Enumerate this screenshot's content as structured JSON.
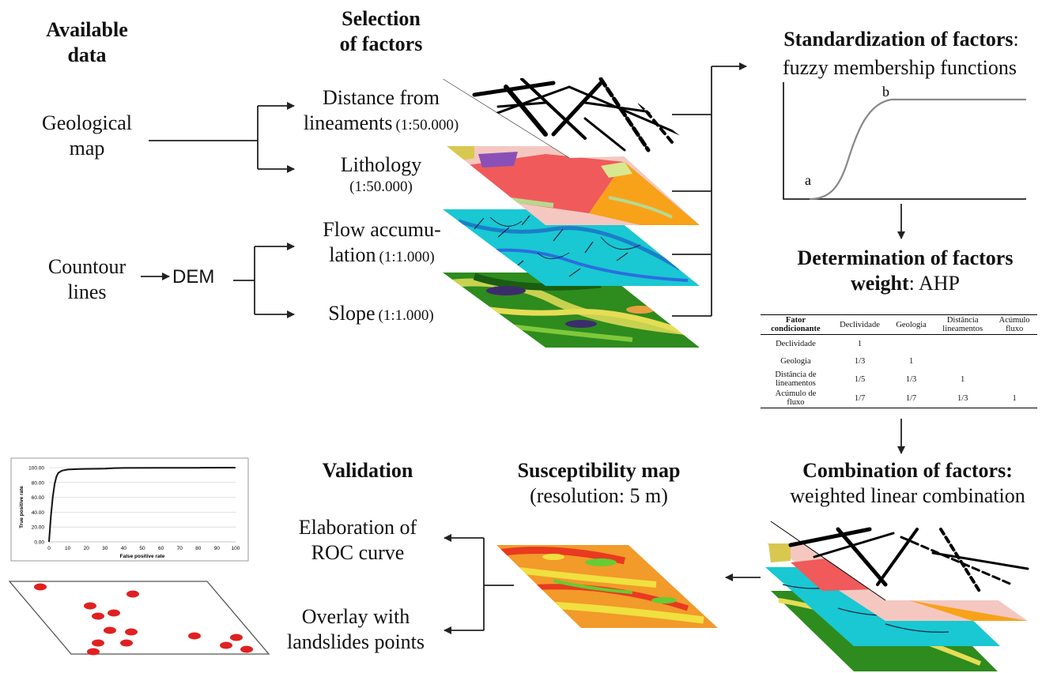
{
  "columns": {
    "available_data": "Available\ndata",
    "selection": "Selection\nof factors"
  },
  "inputs": {
    "geological_map": "Geological\nmap",
    "contour_lines": "Countour\nlines",
    "dem": "DEM"
  },
  "factors": [
    {
      "name": "Distance from\nlineaments",
      "scale": "(1:50.000)"
    },
    {
      "name": "Lithology",
      "scale": "(1:50.000)"
    },
    {
      "name": "Flow accumu-\nlation",
      "scale": "(1:1.000)"
    },
    {
      "name": "Slope",
      "scale": "(1:1.000)"
    }
  ],
  "standardization": {
    "title_bold": "Standardization of factors",
    "colon": ":",
    "subtitle": "fuzzy membership functions",
    "point_a": "a",
    "point_b": "b"
  },
  "weight": {
    "title_bold_1": "Determination of factors",
    "title_bold_2": "weight",
    "suffix": ": AHP"
  },
  "ahp_table": {
    "header": [
      "Fator\ncondicionante",
      "Declividade",
      "Geologia",
      "Distância\nlineamentos",
      "Acúmulo\nfluxo"
    ],
    "rows": [
      [
        "Declividade",
        "1",
        "",
        "",
        ""
      ],
      [
        "Geologia",
        "1/3",
        "1",
        "",
        ""
      ],
      [
        "Distância de\nlineamentos",
        "1/5",
        "1/3",
        "1",
        ""
      ],
      [
        "Acúmulo de\nfluxo",
        "1/7",
        "1/7",
        "1/3",
        "1"
      ]
    ]
  },
  "combination": {
    "title": "Combination of factors:",
    "subtitle": "weighted linear combination"
  },
  "susceptibility": {
    "title": "Susceptibility map",
    "subtitle": "(resolution: 5 m)"
  },
  "validation": {
    "title": "Validation",
    "roc": "Elaboration of\nROC curve",
    "overlay": "Overlay with\nlandslides points"
  },
  "colors": {
    "lithology_red": "#f05a5a",
    "lithology_orange": "#f8a21a",
    "flow_cyan": "#19c8d2",
    "slope_green": "#2e8b1e",
    "landslide_points": "#e02020"
  },
  "chart_data": {
    "type": "line",
    "xlabel": "False positive rate",
    "ylabel": "True positive rate",
    "xlim": [
      0,
      100
    ],
    "ylim": [
      0,
      100
    ],
    "x_ticks": [
      "0",
      "10",
      "20",
      "30",
      "40",
      "50",
      "60",
      "70",
      "80",
      "90",
      "100"
    ],
    "y_ticks": [
      "0.00",
      "20.00",
      "40.00",
      "60.00",
      "80.00",
      "100.00"
    ],
    "grid": true,
    "x": [
      0,
      1,
      2,
      3,
      4,
      5,
      7,
      10,
      15,
      20,
      30,
      35,
      40,
      60,
      80,
      100
    ],
    "y": [
      0,
      35,
      60,
      78,
      88,
      93,
      96,
      97.5,
      98,
      98.3,
      98.6,
      99.4,
      99.6,
      99.7,
      99.8,
      100
    ]
  }
}
